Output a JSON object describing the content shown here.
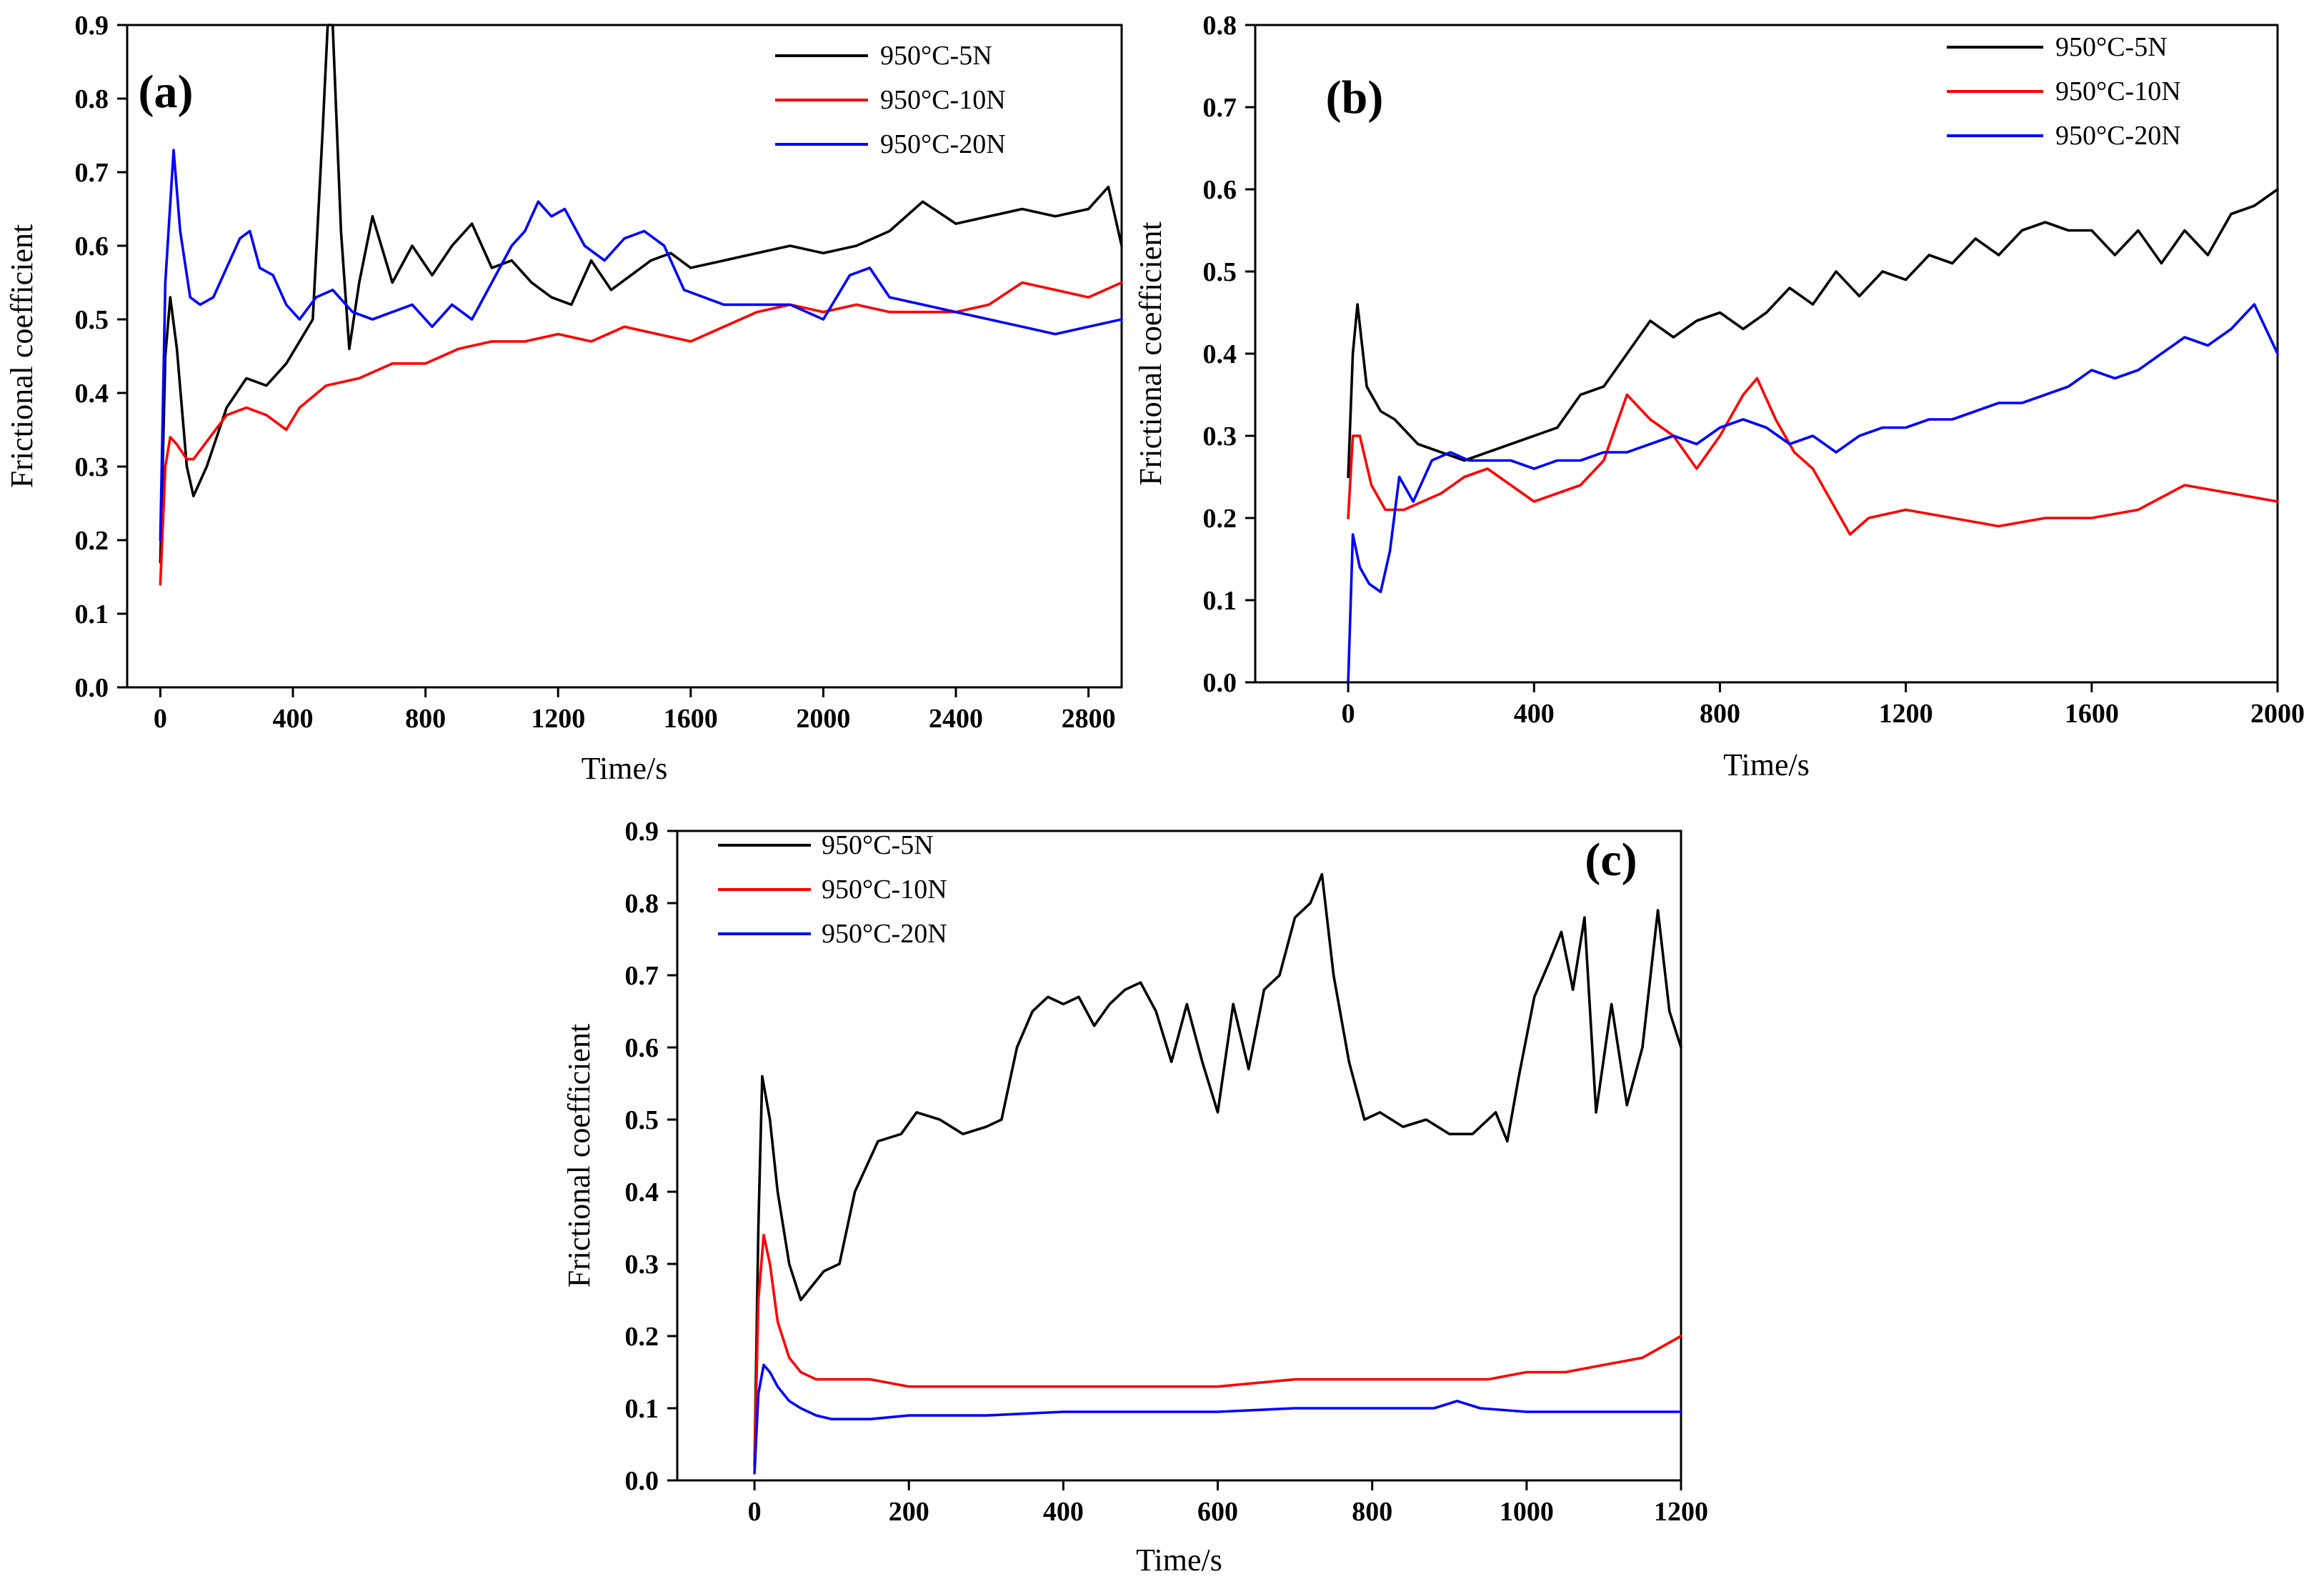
{
  "chart_data": [
    {
      "type": "line",
      "panel_label": "(a)",
      "xlabel": "Time/s",
      "ylabel": "Frictional coefficient",
      "xlim": [
        -100,
        2900
      ],
      "ylim": [
        0,
        0.9
      ],
      "xticks": [
        "0",
        "400",
        "800",
        "1200",
        "1600",
        "2000",
        "2400",
        "2800"
      ],
      "yticks": [
        "0.0",
        "0.1",
        "0.2",
        "0.3",
        "0.4",
        "0.5",
        "0.6",
        "0.7",
        "0.8",
        "0.9"
      ],
      "legend_position": "top-right",
      "series": [
        {
          "name": "950°C-5N",
          "color": "#000000",
          "x": [
            0,
            15,
            30,
            50,
            80,
            100,
            140,
            200,
            260,
            320,
            380,
            420,
            460,
            490,
            505,
            520,
            545,
            570,
            600,
            640,
            700,
            760,
            820,
            880,
            940,
            1000,
            1060,
            1120,
            1180,
            1240,
            1300,
            1360,
            1420,
            1480,
            1540,
            1600,
            1700,
            1800,
            1900,
            2000,
            2100,
            2200,
            2300,
            2400,
            2500,
            2600,
            2700,
            2800,
            2860,
            2900
          ],
          "y": [
            0.17,
            0.45,
            0.53,
            0.46,
            0.3,
            0.26,
            0.3,
            0.38,
            0.42,
            0.41,
            0.44,
            0.47,
            0.5,
            0.76,
            0.9,
            0.9,
            0.62,
            0.46,
            0.55,
            0.64,
            0.55,
            0.6,
            0.56,
            0.6,
            0.63,
            0.57,
            0.58,
            0.55,
            0.53,
            0.52,
            0.58,
            0.54,
            0.56,
            0.58,
            0.59,
            0.57,
            0.58,
            0.59,
            0.6,
            0.59,
            0.6,
            0.62,
            0.66,
            0.63,
            0.64,
            0.65,
            0.64,
            0.65,
            0.68,
            0.6
          ]
        },
        {
          "name": "950°C-10N",
          "color": "#ff0000",
          "x": [
            0,
            15,
            30,
            50,
            80,
            100,
            150,
            200,
            260,
            320,
            380,
            420,
            500,
            600,
            700,
            800,
            900,
            1000,
            1100,
            1200,
            1300,
            1400,
            1500,
            1600,
            1700,
            1800,
            1900,
            2000,
            2100,
            2200,
            2300,
            2400,
            2500,
            2600,
            2700,
            2800,
            2900
          ],
          "y": [
            0.14,
            0.3,
            0.34,
            0.33,
            0.31,
            0.31,
            0.34,
            0.37,
            0.38,
            0.37,
            0.35,
            0.38,
            0.41,
            0.42,
            0.44,
            0.44,
            0.46,
            0.47,
            0.47,
            0.48,
            0.47,
            0.49,
            0.48,
            0.47,
            0.49,
            0.51,
            0.52,
            0.51,
            0.52,
            0.51,
            0.51,
            0.51,
            0.52,
            0.55,
            0.54,
            0.53,
            0.55
          ]
        },
        {
          "name": "950°C-20N",
          "color": "#0000ff",
          "x": [
            0,
            15,
            40,
            60,
            90,
            120,
            160,
            200,
            240,
            270,
            300,
            340,
            380,
            420,
            470,
            520,
            580,
            640,
            700,
            760,
            820,
            880,
            940,
            1000,
            1060,
            1100,
            1140,
            1180,
            1220,
            1280,
            1340,
            1400,
            1460,
            1520,
            1580,
            1640,
            1700,
            1800,
            1900,
            2000,
            2080,
            2140,
            2200,
            2300,
            2400,
            2500,
            2600,
            2700,
            2800,
            2900
          ],
          "y": [
            0.2,
            0.55,
            0.73,
            0.62,
            0.53,
            0.52,
            0.53,
            0.57,
            0.61,
            0.62,
            0.57,
            0.56,
            0.52,
            0.5,
            0.53,
            0.54,
            0.51,
            0.5,
            0.51,
            0.52,
            0.49,
            0.52,
            0.5,
            0.55,
            0.6,
            0.62,
            0.66,
            0.64,
            0.65,
            0.6,
            0.58,
            0.61,
            0.62,
            0.6,
            0.54,
            0.53,
            0.52,
            0.52,
            0.52,
            0.5,
            0.56,
            0.57,
            0.53,
            0.52,
            0.51,
            0.5,
            0.49,
            0.48,
            0.49,
            0.5
          ]
        }
      ]
    },
    {
      "type": "line",
      "panel_label": "(b)",
      "xlabel": "Time/s",
      "ylabel": "Frictional coefficient",
      "xlim": [
        -200,
        2000
      ],
      "ylim": [
        0,
        0.8
      ],
      "xticks": [
        "0",
        "400",
        "800",
        "1200",
        "1600",
        "2000"
      ],
      "yticks": [
        "0.0",
        "0.1",
        "0.2",
        "0.3",
        "0.4",
        "0.5",
        "0.6",
        "0.7",
        "0.8"
      ],
      "legend_position": "top-right",
      "series": [
        {
          "name": "950°C-5N",
          "color": "#000000",
          "x": [
            0,
            10,
            20,
            40,
            70,
            100,
            150,
            200,
            250,
            300,
            350,
            400,
            450,
            500,
            550,
            600,
            650,
            700,
            750,
            800,
            850,
            900,
            950,
            1000,
            1050,
            1100,
            1150,
            1200,
            1250,
            1300,
            1350,
            1400,
            1450,
            1500,
            1550,
            1600,
            1650,
            1700,
            1750,
            1800,
            1850,
            1900,
            1950,
            2000
          ],
          "y": [
            0.25,
            0.4,
            0.46,
            0.36,
            0.33,
            0.32,
            0.29,
            0.28,
            0.27,
            0.28,
            0.29,
            0.3,
            0.31,
            0.35,
            0.36,
            0.4,
            0.44,
            0.42,
            0.44,
            0.45,
            0.43,
            0.45,
            0.48,
            0.46,
            0.5,
            0.47,
            0.5,
            0.49,
            0.52,
            0.51,
            0.54,
            0.52,
            0.55,
            0.56,
            0.55,
            0.55,
            0.52,
            0.55,
            0.51,
            0.55,
            0.52,
            0.57,
            0.58,
            0.6
          ]
        },
        {
          "name": "950°C-10N",
          "color": "#ff0000",
          "x": [
            0,
            10,
            25,
            50,
            80,
            120,
            160,
            200,
            250,
            300,
            350,
            400,
            450,
            500,
            550,
            600,
            650,
            700,
            750,
            800,
            850,
            880,
            920,
            960,
            1000,
            1040,
            1080,
            1120,
            1200,
            1300,
            1400,
            1500,
            1600,
            1700,
            1800,
            1900,
            2000
          ],
          "y": [
            0.2,
            0.3,
            0.3,
            0.24,
            0.21,
            0.21,
            0.22,
            0.23,
            0.25,
            0.26,
            0.24,
            0.22,
            0.23,
            0.24,
            0.27,
            0.35,
            0.32,
            0.3,
            0.26,
            0.3,
            0.35,
            0.37,
            0.32,
            0.28,
            0.26,
            0.22,
            0.18,
            0.2,
            0.21,
            0.2,
            0.19,
            0.2,
            0.2,
            0.21,
            0.24,
            0.23,
            0.22
          ]
        },
        {
          "name": "950°C-20N",
          "color": "#0000ff",
          "x": [
            0,
            10,
            25,
            45,
            70,
            90,
            110,
            140,
            180,
            220,
            260,
            300,
            350,
            400,
            450,
            500,
            550,
            600,
            650,
            700,
            750,
            800,
            850,
            900,
            950,
            1000,
            1050,
            1100,
            1150,
            1200,
            1250,
            1300,
            1350,
            1400,
            1450,
            1500,
            1550,
            1600,
            1650,
            1700,
            1750,
            1800,
            1850,
            1900,
            1950,
            2000
          ],
          "y": [
            0.0,
            0.18,
            0.14,
            0.12,
            0.11,
            0.16,
            0.25,
            0.22,
            0.27,
            0.28,
            0.27,
            0.27,
            0.27,
            0.26,
            0.27,
            0.27,
            0.28,
            0.28,
            0.29,
            0.3,
            0.29,
            0.31,
            0.32,
            0.31,
            0.29,
            0.3,
            0.28,
            0.3,
            0.31,
            0.31,
            0.32,
            0.32,
            0.33,
            0.34,
            0.34,
            0.35,
            0.36,
            0.38,
            0.37,
            0.38,
            0.4,
            0.42,
            0.41,
            0.43,
            0.46,
            0.4
          ]
        }
      ]
    },
    {
      "type": "line",
      "panel_label": "(c)",
      "xlabel": "Time/s",
      "ylabel": "Frictional coefficient",
      "xlim": [
        -100,
        1200
      ],
      "ylim": [
        0,
        0.9
      ],
      "xticks": [
        "0",
        "200",
        "400",
        "600",
        "800",
        "1000",
        "1200"
      ],
      "yticks": [
        "0.0",
        "0.1",
        "0.2",
        "0.3",
        "0.4",
        "0.5",
        "0.6",
        "0.7",
        "0.8",
        "0.9"
      ],
      "legend_position": "top-left",
      "series": [
        {
          "name": "950°C-5N",
          "color": "#000000",
          "x": [
            0,
            5,
            10,
            20,
            30,
            45,
            60,
            75,
            90,
            110,
            130,
            160,
            190,
            210,
            240,
            270,
            300,
            320,
            340,
            360,
            380,
            400,
            420,
            440,
            460,
            480,
            500,
            520,
            540,
            560,
            580,
            600,
            620,
            640,
            660,
            680,
            700,
            720,
            735,
            750,
            770,
            790,
            810,
            840,
            870,
            900,
            930,
            960,
            975,
            990,
            1010,
            1030,
            1045,
            1060,
            1075,
            1090,
            1110,
            1130,
            1150,
            1170,
            1185,
            1200
          ],
          "y": [
            0.02,
            0.35,
            0.56,
            0.5,
            0.4,
            0.3,
            0.25,
            0.27,
            0.29,
            0.3,
            0.4,
            0.47,
            0.48,
            0.51,
            0.5,
            0.48,
            0.49,
            0.5,
            0.6,
            0.65,
            0.67,
            0.66,
            0.67,
            0.63,
            0.66,
            0.68,
            0.69,
            0.65,
            0.58,
            0.66,
            0.58,
            0.51,
            0.66,
            0.57,
            0.68,
            0.7,
            0.78,
            0.8,
            0.84,
            0.7,
            0.58,
            0.5,
            0.51,
            0.49,
            0.5,
            0.48,
            0.48,
            0.51,
            0.47,
            0.56,
            0.67,
            0.72,
            0.76,
            0.68,
            0.78,
            0.51,
            0.66,
            0.52,
            0.6,
            0.79,
            0.65,
            0.6
          ]
        },
        {
          "name": "950°C-10N",
          "color": "#ff0000",
          "x": [
            0,
            5,
            12,
            20,
            30,
            45,
            60,
            80,
            100,
            150,
            200,
            300,
            400,
            500,
            600,
            700,
            800,
            900,
            950,
            1000,
            1050,
            1100,
            1150,
            1200
          ],
          "y": [
            0.02,
            0.25,
            0.34,
            0.3,
            0.22,
            0.17,
            0.15,
            0.14,
            0.14,
            0.14,
            0.13,
            0.13,
            0.13,
            0.13,
            0.13,
            0.14,
            0.14,
            0.14,
            0.14,
            0.15,
            0.15,
            0.16,
            0.17,
            0.2
          ]
        },
        {
          "name": "950°C-20N",
          "color": "#0000ff",
          "x": [
            0,
            5,
            12,
            20,
            30,
            45,
            60,
            80,
            100,
            150,
            200,
            300,
            400,
            500,
            600,
            700,
            800,
            880,
            910,
            940,
            1000,
            1100,
            1200
          ],
          "y": [
            0.01,
            0.12,
            0.16,
            0.15,
            0.13,
            0.11,
            0.1,
            0.09,
            0.085,
            0.085,
            0.09,
            0.09,
            0.095,
            0.095,
            0.095,
            0.1,
            0.1,
            0.1,
            0.11,
            0.1,
            0.095,
            0.095,
            0.095
          ]
        }
      ]
    }
  ]
}
